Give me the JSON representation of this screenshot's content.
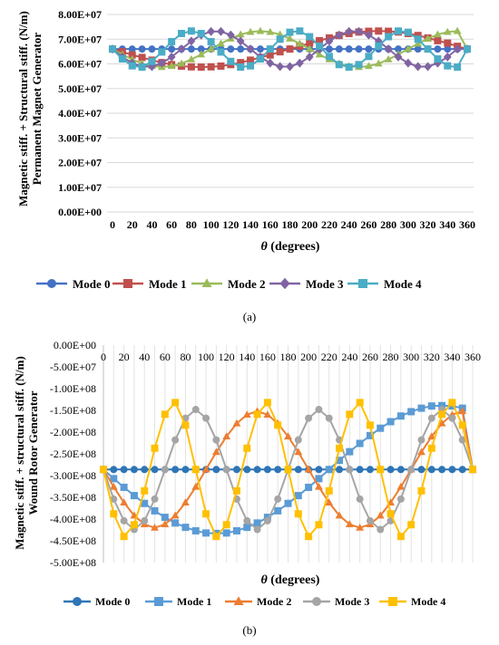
{
  "captions": [
    "(a)",
    "(b)"
  ],
  "chart_data": [
    {
      "panel": "(a)",
      "type": "line",
      "ylabel_lines": [
        "Magnetic stiff. + Structural stiff. (N/m)",
        "Permanent Magnet Generator"
      ],
      "xlabel_symbol": "θ",
      "xlabel_rest": " (degrees)",
      "y_ticks": [
        "0.00E+00",
        "1.00E+07",
        "2.00E+07",
        "3.00E+07",
        "4.00E+07",
        "5.00E+07",
        "6.00E+07",
        "7.00E+07",
        "8.00E+07"
      ],
      "x_ticks": [
        "0",
        "20",
        "40",
        "60",
        "80",
        "100",
        "120",
        "140",
        "160",
        "180",
        "200",
        "220",
        "240",
        "260",
        "280",
        "300",
        "320",
        "340",
        "360"
      ],
      "ylim": [
        0,
        80000000
      ],
      "xlim": [
        0,
        360
      ],
      "grid": "horizontal",
      "legend": "bottom",
      "x": [
        0,
        10,
        20,
        30,
        40,
        50,
        60,
        70,
        80,
        90,
        100,
        110,
        120,
        130,
        140,
        150,
        160,
        170,
        180,
        190,
        200,
        210,
        220,
        230,
        240,
        250,
        260,
        270,
        280,
        290,
        300,
        310,
        320,
        330,
        340,
        350,
        360
      ],
      "series": [
        {
          "name": "Mode 0",
          "color": "#4472C4",
          "marker": "circle",
          "values": [
            66000000,
            66000000,
            66000000,
            66000000,
            66000000,
            66000000,
            66000000,
            66000000,
            66000000,
            66000000,
            66000000,
            66000000,
            66000000,
            66000000,
            66000000,
            66000000,
            66000000,
            66000000,
            66000000,
            66000000,
            66000000,
            66000000,
            66000000,
            66000000,
            66000000,
            66000000,
            66000000,
            66000000,
            66000000,
            66000000,
            66000000,
            66000000,
            66000000,
            66000000,
            66000000,
            66000000,
            66000000
          ]
        },
        {
          "name": "Mode 1",
          "color": "#C0504D",
          "marker": "square",
          "values": [
            66000000,
            64900000,
            63600000,
            62600000,
            61500000,
            60500000,
            59700000,
            59100000,
            58800000,
            58700000,
            58800000,
            59100000,
            59700000,
            60500000,
            61500000,
            62600000,
            63600000,
            64900000,
            66000000,
            67100000,
            68400000,
            69400000,
            70500000,
            71500000,
            72300000,
            72900000,
            73200000,
            73300000,
            73200000,
            72900000,
            72300000,
            71500000,
            70500000,
            69400000,
            68400000,
            67100000,
            66000000
          ]
        },
        {
          "name": "Mode 2",
          "color": "#9BBB59",
          "marker": "triangle",
          "values": [
            66000000,
            63800000,
            61800000,
            60100000,
            59100000,
            58700000,
            59100000,
            60100000,
            61800000,
            63800000,
            66000000,
            68200000,
            70200000,
            71900000,
            72900000,
            73300000,
            72900000,
            71900000,
            70200000,
            68200000,
            66000000,
            63800000,
            61800000,
            60100000,
            59100000,
            58700000,
            59100000,
            60100000,
            61800000,
            63800000,
            66000000,
            68200000,
            70200000,
            71900000,
            72900000,
            73300000,
            66000000
          ]
        },
        {
          "name": "Mode 3",
          "color": "#8064A2",
          "marker": "diamond",
          "values": [
            66000000,
            62800000,
            60300000,
            58900000,
            58900000,
            60300000,
            62800000,
            66000000,
            69200000,
            71700000,
            73100000,
            73100000,
            71700000,
            69200000,
            66000000,
            62800000,
            60300000,
            58900000,
            58900000,
            60300000,
            62800000,
            66000000,
            69200000,
            71700000,
            73100000,
            73100000,
            71700000,
            69200000,
            66000000,
            62800000,
            60300000,
            58900000,
            58900000,
            60300000,
            62800000,
            66000000,
            66000000
          ]
        },
        {
          "name": "Mode 4",
          "color": "#4BACC6",
          "marker": "square",
          "values": [
            66000000,
            62000000,
            59200000,
            58700000,
            61000000,
            64800000,
            69000000,
            72300000,
            73300000,
            72300000,
            69000000,
            64800000,
            61000000,
            58700000,
            59200000,
            62000000,
            66000000,
            70000000,
            72800000,
            73300000,
            71000000,
            67200000,
            63000000,
            59700000,
            58700000,
            59700000,
            63000000,
            67200000,
            71000000,
            73300000,
            72800000,
            70000000,
            66000000,
            62000000,
            59200000,
            58700000,
            66000000
          ]
        }
      ]
    },
    {
      "panel": "(b)",
      "type": "line",
      "ylabel_lines": [
        "Magnetic stiff. + structural stiff. (N/m)",
        "Wound Rotor Generator"
      ],
      "xlabel_symbol": "θ",
      "xlabel_rest": " (degrees)",
      "y_ticks": [
        "0.00E+00",
        "-5.00E+07",
        "-1.00E+08",
        "-1.50E+08",
        "-2.00E+08",
        "-2.50E+08",
        "-3.00E+08",
        "-3.50E+08",
        "-4.00E+08",
        "-4.50E+08",
        "-5.00E+08"
      ],
      "x_ticks": [
        "0",
        "20",
        "40",
        "60",
        "80",
        "100",
        "120",
        "140",
        "160",
        "180",
        "200",
        "220",
        "240",
        "260",
        "280",
        "300",
        "320",
        "340",
        "360"
      ],
      "ylim": [
        -500000000,
        0
      ],
      "xlim": [
        0,
        360
      ],
      "grid": "vertical",
      "legend": "bottom",
      "x": [
        0,
        10,
        20,
        30,
        40,
        50,
        60,
        70,
        80,
        90,
        100,
        110,
        120,
        130,
        140,
        150,
        160,
        170,
        180,
        190,
        200,
        210,
        220,
        230,
        240,
        250,
        260,
        270,
        280,
        290,
        300,
        310,
        320,
        330,
        340,
        350,
        360
      ],
      "series": [
        {
          "name": "Mode 0",
          "color": "#2E75B6",
          "marker": "circle",
          "values": [
            -286000000,
            -286000000,
            -286000000,
            -286000000,
            -286000000,
            -286000000,
            -286000000,
            -286000000,
            -286000000,
            -286000000,
            -286000000,
            -286000000,
            -286000000,
            -286000000,
            -286000000,
            -286000000,
            -286000000,
            -286000000,
            -286000000,
            -286000000,
            -286000000,
            -286000000,
            -286000000,
            -286000000,
            -286000000,
            -286000000,
            -286000000,
            -286000000,
            -286000000,
            -286000000,
            -286000000,
            -286000000,
            -286000000,
            -286000000,
            -286000000,
            -286000000,
            -286000000
          ]
        },
        {
          "name": "Mode 1",
          "color": "#5B9BD5",
          "marker": "square",
          "values": [
            -286000000,
            -307000000,
            -327000000,
            -346000000,
            -364000000,
            -381000000,
            -396000000,
            -409000000,
            -419000000,
            -427000000,
            -432000000,
            -433000000,
            -432000000,
            -427000000,
            -419000000,
            -409000000,
            -396000000,
            -381000000,
            -364000000,
            -346000000,
            -327000000,
            -307000000,
            -286000000,
            -265000000,
            -245000000,
            -226000000,
            -208000000,
            -191000000,
            -176000000,
            -163000000,
            -153000000,
            -145000000,
            -140000000,
            -139000000,
            -140000000,
            -145000000,
            -286000000
          ]
        },
        {
          "name": "Mode 2",
          "color": "#ED7D31",
          "marker": "triangle",
          "values": [
            -286000000,
            -326000000,
            -362000000,
            -392000000,
            -412000000,
            -420000000,
            -412000000,
            -392000000,
            -362000000,
            -326000000,
            -286000000,
            -246000000,
            -210000000,
            -180000000,
            -160000000,
            -152000000,
            -160000000,
            -180000000,
            -210000000,
            -246000000,
            -286000000,
            -326000000,
            -362000000,
            -392000000,
            -412000000,
            -420000000,
            -412000000,
            -392000000,
            -362000000,
            -326000000,
            -286000000,
            -246000000,
            -210000000,
            -180000000,
            -160000000,
            -152000000,
            -286000000
          ]
        },
        {
          "name": "Mode 3",
          "color": "#A5A5A5",
          "marker": "circle",
          "values": [
            -286000000,
            -354000000,
            -404000000,
            -424000000,
            -404000000,
            -354000000,
            -286000000,
            -218000000,
            -168000000,
            -148000000,
            -168000000,
            -218000000,
            -286000000,
            -354000000,
            -404000000,
            -424000000,
            -404000000,
            -354000000,
            -286000000,
            -218000000,
            -168000000,
            -148000000,
            -168000000,
            -218000000,
            -286000000,
            -354000000,
            -404000000,
            -424000000,
            -404000000,
            -354000000,
            -286000000,
            -218000000,
            -168000000,
            -148000000,
            -168000000,
            -218000000,
            -286000000
          ]
        },
        {
          "name": "Mode 4",
          "color": "#FFC000",
          "marker": "square",
          "values": [
            -286000000,
            -388000000,
            -440000000,
            -413000000,
            -335000000,
            -237000000,
            -159000000,
            -132000000,
            -184000000,
            -286000000,
            -388000000,
            -440000000,
            -413000000,
            -335000000,
            -237000000,
            -159000000,
            -132000000,
            -184000000,
            -286000000,
            -388000000,
            -440000000,
            -413000000,
            -335000000,
            -237000000,
            -159000000,
            -132000000,
            -184000000,
            -286000000,
            -388000000,
            -440000000,
            -413000000,
            -335000000,
            -237000000,
            -159000000,
            -132000000,
            -184000000,
            -286000000
          ]
        }
      ]
    }
  ]
}
